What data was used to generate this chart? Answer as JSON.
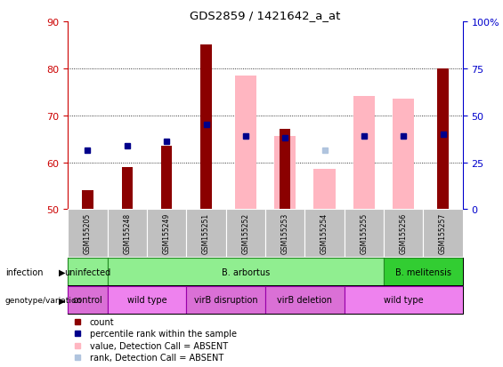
{
  "title": "GDS2859 / 1421642_a_at",
  "samples": [
    "GSM155205",
    "GSM155248",
    "GSM155249",
    "GSM155251",
    "GSM155252",
    "GSM155253",
    "GSM155254",
    "GSM155255",
    "GSM155256",
    "GSM155257"
  ],
  "ylim_left": [
    50,
    90
  ],
  "ylim_right": [
    0,
    100
  ],
  "yticks_left": [
    50,
    60,
    70,
    80,
    90
  ],
  "yticks_right": [
    0,
    25,
    50,
    75,
    100
  ],
  "ytick_labels_right": [
    "0",
    "25",
    "50",
    "75",
    "100%"
  ],
  "red_bars": [
    54,
    59,
    63.5,
    85,
    null,
    67,
    null,
    null,
    null,
    80
  ],
  "blue_squares": [
    62.5,
    63.5,
    64.5,
    68,
    65.5,
    65.2,
    null,
    65.5,
    65.5,
    66
  ],
  "pink_bars": [
    null,
    null,
    null,
    null,
    78.5,
    65.5,
    58.5,
    74,
    73.5,
    null
  ],
  "lavender_squares": [
    null,
    null,
    null,
    null,
    65.5,
    65.5,
    62.5,
    65.5,
    65.5,
    null
  ],
  "infection_groups": [
    {
      "label": "uninfected",
      "start": 0,
      "end": 1,
      "color": "#90EE90"
    },
    {
      "label": "B. arbortus",
      "start": 1,
      "end": 8,
      "color": "#90EE90"
    },
    {
      "label": "B. melitensis",
      "start": 8,
      "end": 10,
      "color": "#32CD32"
    }
  ],
  "genotype_groups": [
    {
      "label": "control",
      "start": 0,
      "end": 1,
      "color": "#DA70D6"
    },
    {
      "label": "wild type",
      "start": 1,
      "end": 3,
      "color": "#EE82EE"
    },
    {
      "label": "virB disruption",
      "start": 3,
      "end": 5,
      "color": "#DA70D6"
    },
    {
      "label": "virB deletion",
      "start": 5,
      "end": 7,
      "color": "#DA70D6"
    },
    {
      "label": "wild type",
      "start": 7,
      "end": 10,
      "color": "#EE82EE"
    }
  ],
  "colors": {
    "red_bar": "#8B0000",
    "blue_square": "#00008B",
    "pink_bar": "#FFB6C1",
    "lavender_square": "#B0C4DE",
    "left_axis": "#CC0000",
    "right_axis": "#0000CC",
    "infection_border": "#228B22",
    "genotype_border": "#9900AA",
    "sample_bg": "#C0C0C0"
  },
  "legend_items": [
    {
      "color": "#8B0000",
      "label": "count"
    },
    {
      "color": "#00008B",
      "label": "percentile rank within the sample"
    },
    {
      "color": "#FFB6C1",
      "label": "value, Detection Call = ABSENT"
    },
    {
      "color": "#B0C4DE",
      "label": "rank, Detection Call = ABSENT"
    }
  ]
}
